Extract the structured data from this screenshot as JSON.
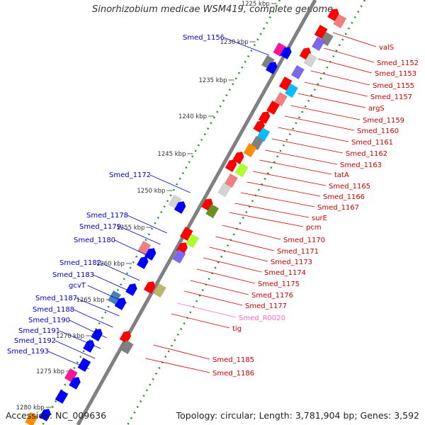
{
  "title": "Sinorhizobium medicae WSM419, complete genome",
  "footer": {
    "accession": "Accession: NC_009636",
    "topology": "Topology: circular; Length: 3,781,904 bp; Genes: 3,592"
  },
  "ticks": [
    "1225 kbp",
    "1230 kbp",
    "1235 kbp",
    "1240 kbp",
    "1245 kbp",
    "1250 kbp",
    "1255 kbp",
    "1260 kbp",
    "1265 kbp",
    "1270 kbp",
    "1275 kbp",
    "1280 kbp"
  ],
  "left_labels": [
    "Smed_1156",
    "Smed_1172",
    "Smed_1178",
    "Smed_1179",
    "Smed_1180",
    "Smed_1182",
    "Smed_1183",
    "gcvT",
    "Smed_1187",
    "Smed_1188",
    "Smed_1190",
    "Smed_1191",
    "Smed_1192",
    "Smed_1193"
  ],
  "right_labels": [
    "valS",
    "Smed_1152",
    "Smed_1153",
    "Smed_1155",
    "Smed_1157",
    "argS",
    "Smed_1159",
    "Smed_1160",
    "Smed_1161",
    "Smed_1162",
    "Smed_1163",
    "tatA",
    "Smed_1165",
    "Smed_1166",
    "Smed_1167",
    "surE",
    "pcm",
    "Smed_1170",
    "Smed_1171",
    "Smed_1173",
    "Smed_1174",
    "Smed_1175",
    "Smed_1176",
    "Smed_1177",
    "Smed_R0020",
    "tig",
    "Smed_1185",
    "Smed_1186"
  ],
  "colors": {
    "red": "#ff0000",
    "pink": "#f08080",
    "blue": "#0000ff",
    "purple": "#7b68ee",
    "cyan": "#00bfff",
    "gray": "#808080",
    "lightgray": "#d3d3d3",
    "orange": "#ff8c00",
    "lime": "#adff2f",
    "olive": "#6b8e23",
    "khaki": "#bdb76b",
    "magenta": "#ff1493",
    "steelblue": "#4682b4",
    "label_blue": "#0000cc",
    "label_red": "#cc0000",
    "label_rna": "#ff66cc",
    "tick_dot": "#228b22",
    "backbone": "#808080"
  }
}
